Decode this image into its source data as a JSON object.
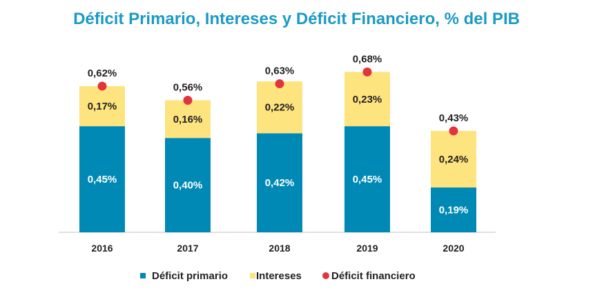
{
  "chart_data": {
    "type": "bar",
    "stacked": true,
    "title": "Déficit Primario, Intereses y Déficit Financiero, % del PIB",
    "categories": [
      "2016",
      "2017",
      "2018",
      "2019",
      "2020"
    ],
    "series": [
      {
        "name": "Déficit primario",
        "color": "#0089b4",
        "values": [
          0.45,
          0.4,
          0.42,
          0.45,
          0.19
        ],
        "labels": [
          "0,45%",
          "0,40%",
          "0,42%",
          "0,45%",
          "0,19%"
        ]
      },
      {
        "name": "Intereses",
        "color": "#fde47f",
        "values": [
          0.17,
          0.16,
          0.22,
          0.23,
          0.24
        ],
        "labels": [
          "0,17%",
          "0,16%",
          "0,22%",
          "0,23%",
          "0,24%"
        ]
      },
      {
        "name": "Déficit financiero",
        "type": "scatter",
        "color": "#e1343d",
        "values": [
          0.62,
          0.56,
          0.63,
          0.68,
          0.43
        ],
        "labels": [
          "0,62%",
          "0,56%",
          "0,63%",
          "0,68%",
          "0,43%"
        ]
      }
    ],
    "xlabel": "",
    "ylabel": "",
    "ylim": [
      0,
      0.8
    ],
    "grid": false,
    "legend": "bottom"
  }
}
